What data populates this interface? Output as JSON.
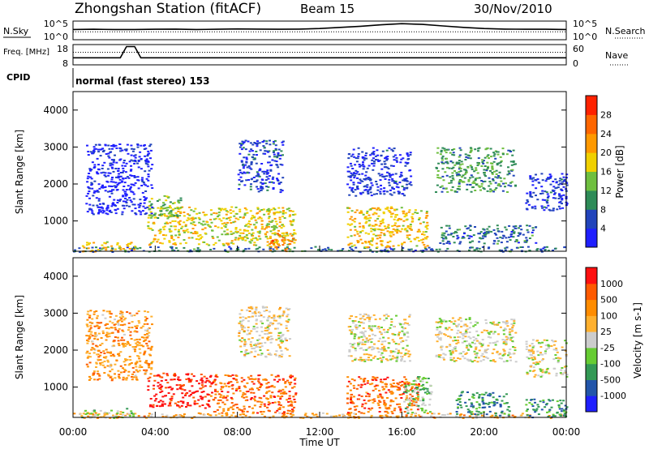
{
  "header": {
    "station": "Zhongshan Station (fitACF)",
    "beam": "Beam 15",
    "date": "30/Nov/2010",
    "cpid_label": "CPID",
    "cpid_value": "normal (fast stereo) 153"
  },
  "colors": {
    "power": [
      "#1f1fff",
      "#2244bb",
      "#2e8b57",
      "#6fbf3f",
      "#f0d000",
      "#ff9900",
      "#ff6600",
      "#ff2200"
    ],
    "velocity": [
      "#ff1010",
      "#ff5a00",
      "#ff8c00",
      "#ffb02e",
      "#cccccc",
      "#66cc33",
      "#339955",
      "#2255aa",
      "#1f1fff"
    ]
  },
  "chart_data": [
    {
      "type": "line",
      "title": "N.Sky",
      "left_ticks": [
        "10^5",
        "10^0"
      ],
      "right_label": "N.Search",
      "right_ticks": [
        "10^5",
        "10^0"
      ],
      "series": [
        {
          "name": "N.Sky",
          "x": [
            0,
            1,
            2,
            3,
            4,
            5,
            6,
            7,
            8,
            9,
            10,
            11,
            12,
            13,
            14,
            15,
            16,
            17,
            18,
            19,
            20,
            21,
            22,
            23,
            24
          ],
          "y": [
            0.55,
            0.56,
            0.55,
            0.55,
            0.56,
            0.57,
            0.55,
            0.56,
            0.58,
            0.57,
            0.56,
            0.57,
            0.6,
            0.66,
            0.72,
            0.8,
            0.86,
            0.82,
            0.74,
            0.66,
            0.6,
            0.57,
            0.56,
            0.56,
            0.55
          ]
        },
        {
          "name": "N.Search",
          "x": [
            0,
            24
          ],
          "y": [
            0.42,
            0.42
          ]
        }
      ]
    },
    {
      "type": "line",
      "left_label": "Freq. [MHz]",
      "left_ticks": [
        "18",
        "8"
      ],
      "right_label": "Nave",
      "right_ticks": [
        "60",
        "0"
      ],
      "series": [
        {
          "name": "Freq.",
          "x": [
            0,
            2.3,
            2.6,
            3,
            3.3,
            24
          ],
          "y": [
            0.35,
            0.35,
            0.9,
            0.9,
            0.35,
            0.35
          ]
        },
        {
          "name": "Nave",
          "x": [
            0,
            24
          ],
          "y": [
            0.62,
            0.62
          ]
        }
      ]
    },
    {
      "type": "heatmap",
      "name": "power",
      "ylabel": "Slant Range [km]",
      "xlabel": "Time UT",
      "x_ticks": [
        "00:00",
        "04:00",
        "08:00",
        "12:00",
        "16:00",
        "20:00",
        "00:00"
      ],
      "y_ticks": [
        "1000",
        "2000",
        "3000",
        "4000"
      ],
      "xlim": [
        0,
        24
      ],
      "ylim": [
        180,
        4500
      ],
      "colorbar_label": "Power [dB]",
      "colorbar_ticks": [
        "4",
        "8",
        "12",
        "16",
        "20",
        "24",
        "28"
      ],
      "regions": [
        {
          "t0": 0.0,
          "t1": 24.0,
          "r0": 180,
          "r1": 320,
          "level": 0.25
        },
        {
          "t0": 0.4,
          "t1": 3.0,
          "r0": 180,
          "r1": 450,
          "level": 0.6
        },
        {
          "t0": 3.6,
          "t1": 10.8,
          "r0": 350,
          "r1": 1400,
          "level": 0.55
        },
        {
          "t0": 3.6,
          "t1": 5.2,
          "r0": 1100,
          "r1": 1700,
          "level": 0.4
        },
        {
          "t0": 9.5,
          "t1": 10.8,
          "r0": 180,
          "r1": 700,
          "level": 0.75
        },
        {
          "t0": 8.0,
          "t1": 10.2,
          "r0": 1800,
          "r1": 3200,
          "level": 0.15
        },
        {
          "t0": 0.6,
          "t1": 3.8,
          "r0": 1200,
          "r1": 3100,
          "level": 0.05
        },
        {
          "t0": 13.3,
          "t1": 17.2,
          "r0": 300,
          "r1": 1400,
          "level": 0.6
        },
        {
          "t0": 13.3,
          "t1": 16.4,
          "r0": 1700,
          "r1": 3000,
          "level": 0.12
        },
        {
          "t0": 17.6,
          "t1": 21.5,
          "r0": 1800,
          "r1": 3000,
          "level": 0.35
        },
        {
          "t0": 17.8,
          "t1": 22.5,
          "r0": 400,
          "r1": 900,
          "level": 0.25
        },
        {
          "t0": 22.0,
          "t1": 24.0,
          "r0": 1300,
          "r1": 2300,
          "level": 0.12
        }
      ]
    },
    {
      "type": "heatmap",
      "name": "velocity",
      "ylabel": "Slant Range [km]",
      "xlabel": "Time UT",
      "x_ticks": [
        "00:00",
        "04:00",
        "08:00",
        "12:00",
        "16:00",
        "20:00",
        "00:00"
      ],
      "y_ticks": [
        "1000",
        "2000",
        "3000",
        "4000"
      ],
      "xlim": [
        0,
        24
      ],
      "ylim": [
        180,
        4500
      ],
      "colorbar_label": "Velocity [m s-1]",
      "colorbar_ticks": [
        "1000",
        "500",
        "100",
        "25",
        "-25",
        "-100",
        "-500",
        "-1000"
      ],
      "regions": [
        {
          "t0": 0.0,
          "t1": 24.0,
          "r0": 180,
          "r1": 320,
          "level": 0.35
        },
        {
          "t0": 0.4,
          "t1": 3.0,
          "r0": 180,
          "r1": 450,
          "level": 0.55
        },
        {
          "t0": 3.6,
          "t1": 6.6,
          "r0": 450,
          "r1": 1400,
          "level": 0.05
        },
        {
          "t0": 6.6,
          "t1": 10.8,
          "r0": 300,
          "r1": 1350,
          "level": 0.18
        },
        {
          "t0": 8.0,
          "t1": 10.5,
          "r0": 1800,
          "r1": 3200,
          "level": 0.45
        },
        {
          "t0": 0.6,
          "t1": 3.8,
          "r0": 1200,
          "r1": 3100,
          "level": 0.32
        },
        {
          "t0": 13.3,
          "t1": 16.8,
          "r0": 300,
          "r1": 1300,
          "level": 0.2
        },
        {
          "t0": 16.0,
          "t1": 17.4,
          "r0": 300,
          "r1": 1300,
          "level": 0.62
        },
        {
          "t0": 13.3,
          "t1": 16.4,
          "r0": 1700,
          "r1": 3000,
          "level": 0.48
        },
        {
          "t0": 17.6,
          "t1": 21.5,
          "r0": 1700,
          "r1": 2900,
          "level": 0.48
        },
        {
          "t0": 18.6,
          "t1": 21.2,
          "r0": 250,
          "r1": 900,
          "level": 0.75
        },
        {
          "t0": 22.0,
          "t1": 24.0,
          "r0": 180,
          "r1": 700,
          "level": 0.72
        },
        {
          "t0": 22.0,
          "t1": 24.0,
          "r0": 1300,
          "r1": 2300,
          "level": 0.48
        }
      ]
    }
  ]
}
